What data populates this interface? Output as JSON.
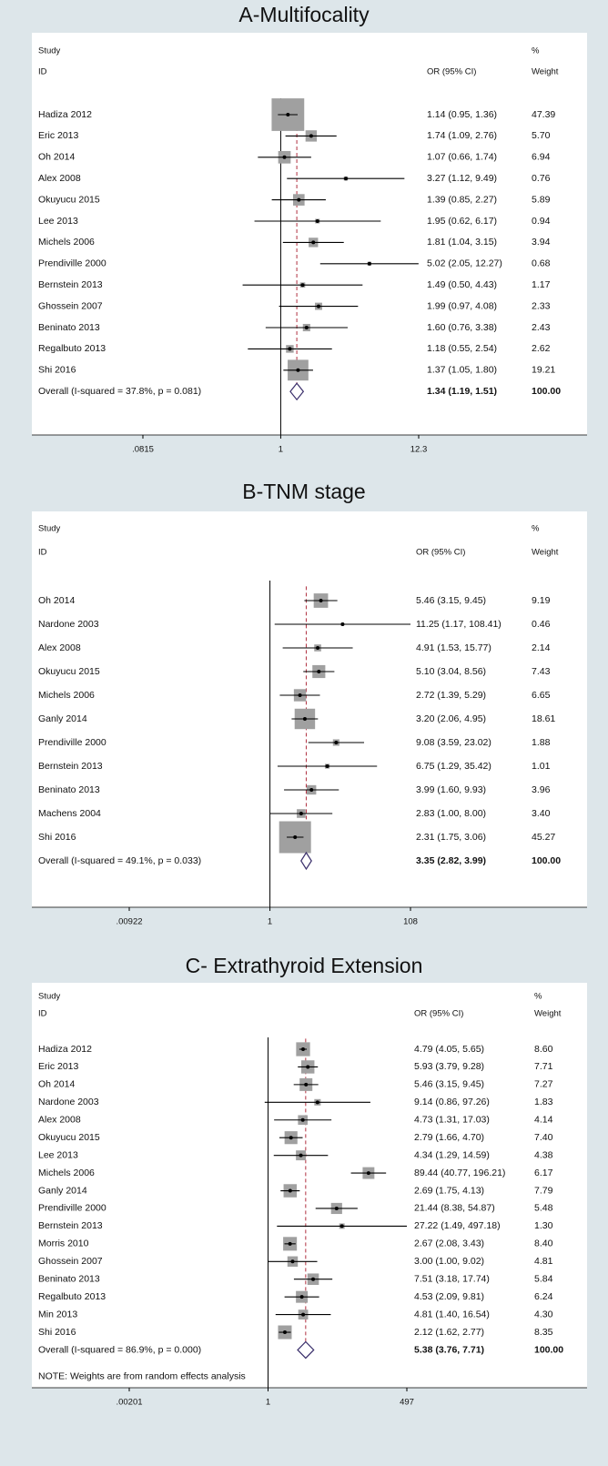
{
  "chart_data": [
    {
      "type": "forest",
      "title": "A-Multifocality",
      "headers": {
        "study_top": "Study",
        "study": "ID",
        "effect": "OR (95% CI)",
        "weight_top": "%",
        "weight": "Weight"
      },
      "categories": [
        "Hadiza 2012",
        "Eric 2013",
        "Oh 2014",
        "Alex 2008",
        "Okuyucu 2015",
        "Lee 2013",
        "Michels 2006",
        "Prendiville 2000",
        "Bernstein 2013",
        "Ghossein 2007",
        "Beninato 2013",
        "Regalbuto 2013",
        "Shi 2016"
      ],
      "values": [
        1.14,
        1.74,
        1.07,
        3.27,
        1.39,
        1.95,
        1.81,
        5.02,
        1.49,
        1.99,
        1.6,
        1.18,
        1.37
      ],
      "lower": [
        0.95,
        1.09,
        0.66,
        1.12,
        0.85,
        0.62,
        1.04,
        2.05,
        0.5,
        0.97,
        0.76,
        0.55,
        1.05
      ],
      "upper": [
        1.36,
        2.76,
        1.74,
        9.49,
        2.27,
        6.17,
        3.15,
        12.27,
        4.43,
        4.08,
        3.38,
        2.54,
        1.8
      ],
      "value_labels": [
        "1.14 (0.95, 1.36)",
        "1.74 (1.09, 2.76)",
        "1.07 (0.66, 1.74)",
        "3.27 (1.12, 9.49)",
        "1.39 (0.85, 2.27)",
        "1.95 (0.62, 6.17)",
        "1.81 (1.04, 3.15)",
        "5.02 (2.05, 12.27)",
        "1.49 (0.50, 4.43)",
        "1.99 (0.97, 4.08)",
        "1.60 (0.76, 3.38)",
        "1.18 (0.55, 2.54)",
        "1.37 (1.05, 1.80)"
      ],
      "weights": [
        47.39,
        5.7,
        6.94,
        0.76,
        5.89,
        0.94,
        3.94,
        0.68,
        1.17,
        2.33,
        2.43,
        2.62,
        19.21
      ],
      "weight_labels": [
        "47.39",
        "5.70",
        "6.94",
        "0.76",
        "5.89",
        "0.94",
        "3.94",
        "0.68",
        "1.17",
        "2.33",
        "2.43",
        "2.62",
        "19.21"
      ],
      "overall": {
        "label": "Overall  (I-squared = 37.8%, p = 0.081)",
        "value": 1.34,
        "lower": 1.19,
        "upper": 1.51,
        "value_label": "1.34 (1.19, 1.51)",
        "weight": 100,
        "weight_label": "100.00"
      },
      "log_x": true,
      "xlim": [
        0.0815,
        12.3
      ],
      "xticks": [
        {
          "value": 0.0815,
          "label": ".0815"
        },
        1,
        12.3
      ]
    },
    {
      "type": "forest",
      "title": "B-TNM stage",
      "headers": {
        "study_top": "Study",
        "study": "ID",
        "effect": "OR (95% CI)",
        "weight_top": "%",
        "weight": "Weight"
      },
      "categories": [
        "Oh 2014",
        "Nardone 2003",
        "Alex 2008",
        "Okuyucu 2015",
        "Michels 2006",
        "Ganly 2014",
        "Prendiville 2000",
        "Bernstein 2013",
        "Beninato 2013",
        "Machens 2004",
        "Shi 2016"
      ],
      "values": [
        5.46,
        11.25,
        4.91,
        5.1,
        2.72,
        3.2,
        9.08,
        6.75,
        3.99,
        2.83,
        2.31
      ],
      "lower": [
        3.15,
        1.17,
        1.53,
        3.04,
        1.39,
        2.06,
        3.59,
        1.29,
        1.6,
        1.0,
        1.75
      ],
      "upper": [
        9.45,
        108.41,
        15.77,
        8.56,
        5.29,
        4.95,
        23.02,
        35.42,
        9.93,
        8.0,
        3.06
      ],
      "value_labels": [
        "5.46 (3.15, 9.45)",
        "11.25 (1.17, 108.41)",
        "4.91 (1.53, 15.77)",
        "5.10 (3.04, 8.56)",
        "2.72 (1.39, 5.29)",
        "3.20 (2.06, 4.95)",
        "9.08 (3.59, 23.02)",
        "6.75 (1.29, 35.42)",
        "3.99 (1.60, 9.93)",
        "2.83 (1.00, 8.00)",
        "2.31 (1.75, 3.06)"
      ],
      "weights": [
        9.19,
        0.46,
        2.14,
        7.43,
        6.65,
        18.61,
        1.88,
        1.01,
        3.96,
        3.4,
        45.27
      ],
      "weight_labels": [
        "9.19",
        "0.46",
        "2.14",
        "7.43",
        "6.65",
        "18.61",
        "1.88",
        "1.01",
        "3.96",
        "3.40",
        "45.27"
      ],
      "overall": {
        "label": "Overall  (I-squared = 49.1%, p = 0.033)",
        "value": 3.35,
        "lower": 2.82,
        "upper": 3.99,
        "value_label": "3.35 (2.82, 3.99)",
        "weight": 100,
        "weight_label": "100.00"
      },
      "log_x": true,
      "xlim": [
        0.00922,
        108
      ],
      "xticks": [
        {
          "value": 0.00922,
          "label": ".00922"
        },
        1,
        108
      ]
    },
    {
      "type": "forest",
      "title": "C- Extrathyroid Extension",
      "headers": {
        "study_top": "Study",
        "study": "ID",
        "effect": "OR (95% CI)",
        "weight_top": "%",
        "weight": "Weight"
      },
      "categories": [
        "Hadiza 2012",
        "Eric 2013",
        "Oh 2014",
        "Nardone 2003",
        "Alex 2008",
        "Okuyucu 2015",
        "Lee 2013",
        "Michels 2006",
        "Ganly 2014",
        "Prendiville 2000",
        "Bernstein 2013",
        "Morris 2010",
        "Ghossein 2007",
        "Beninato 2013",
        "Regalbuto 2013",
        "Min 2013",
        "Shi 2016"
      ],
      "values": [
        4.79,
        5.93,
        5.46,
        9.14,
        4.73,
        2.79,
        4.34,
        89.44,
        2.69,
        21.44,
        27.22,
        2.67,
        3.0,
        7.51,
        4.53,
        4.81,
        2.12
      ],
      "lower": [
        4.05,
        3.79,
        3.15,
        0.86,
        1.31,
        1.66,
        1.29,
        40.77,
        1.75,
        8.38,
        1.49,
        2.08,
        1.0,
        3.18,
        2.09,
        1.4,
        1.62
      ],
      "upper": [
        5.65,
        9.28,
        9.45,
        97.26,
        17.03,
        4.7,
        14.59,
        196.21,
        4.13,
        54.87,
        497.18,
        3.43,
        9.02,
        17.74,
        9.81,
        16.54,
        2.77
      ],
      "value_labels": [
        "4.79 (4.05, 5.65)",
        "5.93 (3.79, 9.28)",
        "5.46 (3.15, 9.45)",
        "9.14 (0.86, 97.26)",
        "4.73 (1.31, 17.03)",
        "2.79 (1.66, 4.70)",
        "4.34 (1.29, 14.59)",
        "89.44 (40.77, 196.21)",
        "2.69 (1.75, 4.13)",
        "21.44 (8.38, 54.87)",
        "27.22 (1.49, 497.18)",
        "2.67 (2.08, 3.43)",
        "3.00 (1.00, 9.02)",
        "7.51 (3.18, 17.74)",
        "4.53 (2.09, 9.81)",
        "4.81 (1.40, 16.54)",
        "2.12 (1.62, 2.77)"
      ],
      "weights": [
        8.6,
        7.71,
        7.27,
        1.83,
        4.14,
        7.4,
        4.38,
        6.17,
        7.79,
        5.48,
        1.3,
        8.4,
        4.81,
        5.84,
        6.24,
        4.3,
        8.35
      ],
      "weight_labels": [
        "8.60",
        "7.71",
        "7.27",
        "1.83",
        "4.14",
        "7.40",
        "4.38",
        "6.17",
        "7.79",
        "5.48",
        "1.30",
        "8.40",
        "4.81",
        "5.84",
        "6.24",
        "4.30",
        "8.35"
      ],
      "overall": {
        "label": "Overall  (I-squared = 86.9%, p = 0.000)",
        "value": 5.38,
        "lower": 3.76,
        "upper": 7.71,
        "value_label": "5.38 (3.76, 7.71)",
        "weight": 100,
        "weight_label": "100.00"
      },
      "note": "NOTE: Weights are from random effects analysis",
      "log_x": true,
      "xlim": [
        0.00201,
        497
      ],
      "xticks": [
        {
          "value": 0.00201,
          "label": ".00201"
        },
        1,
        497
      ]
    }
  ]
}
